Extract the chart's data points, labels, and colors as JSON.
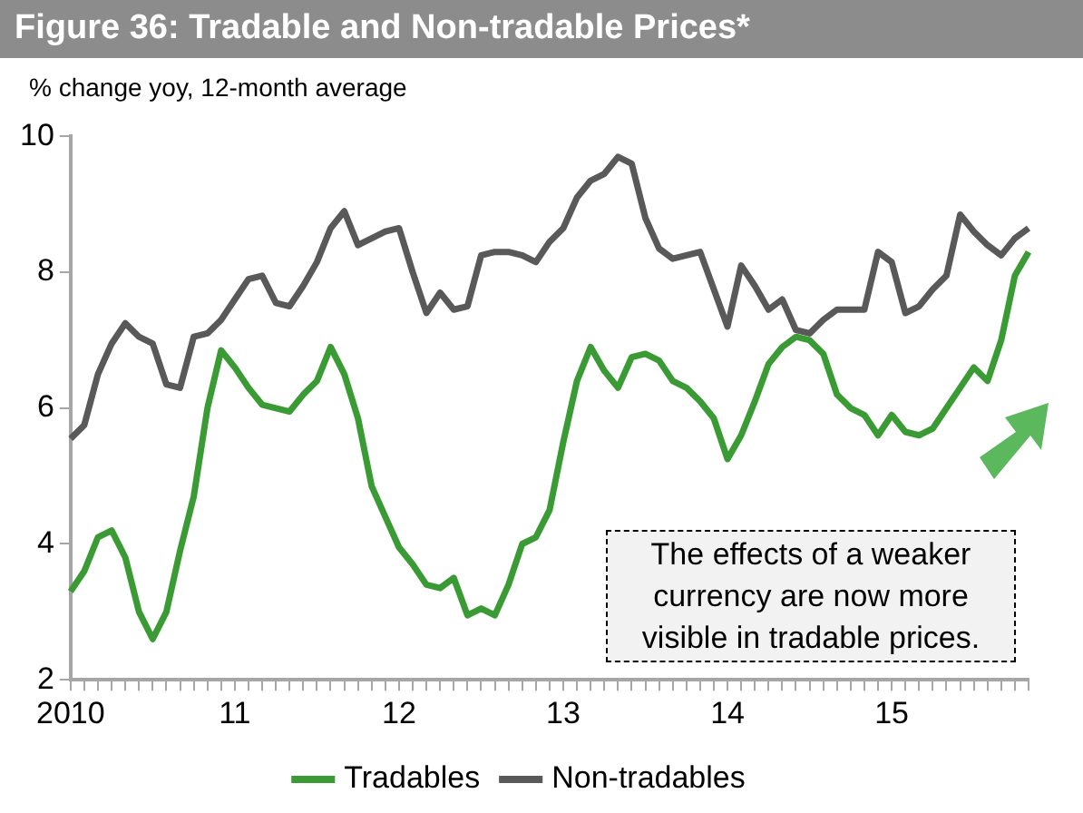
{
  "chart_data": {
    "type": "line",
    "title": "Figure 36: Tradable and Non-tradable Prices*",
    "subtitle": "% change yoy, 12-month average",
    "categories": [
      "2010",
      null,
      null,
      null,
      null,
      null,
      null,
      null,
      null,
      null,
      null,
      null,
      "11",
      null,
      null,
      null,
      null,
      null,
      null,
      null,
      null,
      null,
      null,
      null,
      "12",
      null,
      null,
      null,
      null,
      null,
      null,
      null,
      null,
      null,
      null,
      null,
      "13",
      null,
      null,
      null,
      null,
      null,
      null,
      null,
      null,
      null,
      null,
      null,
      "14",
      null,
      null,
      null,
      null,
      null,
      null,
      null,
      null,
      null,
      null,
      null,
      "15",
      null,
      null,
      null,
      null,
      null,
      null,
      null,
      null,
      null,
      null
    ],
    "series": [
      {
        "name": "Tradables",
        "color": "#3a9b35",
        "values": [
          3.3,
          3.6,
          4.1,
          4.2,
          3.8,
          3.0,
          2.6,
          3.0,
          3.9,
          4.7,
          6.0,
          6.85,
          6.6,
          6.3,
          6.05,
          6.0,
          5.95,
          6.2,
          6.4,
          6.9,
          6.5,
          5.85,
          4.85,
          4.4,
          3.95,
          3.7,
          3.4,
          3.35,
          3.5,
          2.95,
          3.05,
          2.95,
          3.4,
          4.0,
          4.1,
          4.5,
          5.5,
          6.4,
          6.9,
          6.55,
          6.3,
          6.75,
          6.8,
          6.7,
          6.4,
          6.3,
          6.1,
          5.85,
          5.25,
          5.6,
          6.1,
          6.65,
          6.9,
          7.05,
          7.0,
          6.8,
          6.2,
          6.0,
          5.9,
          5.6,
          5.9,
          5.65,
          5.6,
          5.7,
          6.0,
          6.3,
          6.6,
          6.4,
          7.0,
          7.95,
          8.3
        ]
      },
      {
        "name": "Non-tradables",
        "color": "#595959",
        "values": [
          5.55,
          5.75,
          6.5,
          6.95,
          7.25,
          7.05,
          6.95,
          6.35,
          6.3,
          7.05,
          7.1,
          7.3,
          7.6,
          7.9,
          7.95,
          7.55,
          7.5,
          7.8,
          8.15,
          8.65,
          8.9,
          8.4,
          8.5,
          8.6,
          8.65,
          8.0,
          7.4,
          7.7,
          7.45,
          7.5,
          8.25,
          8.3,
          8.3,
          8.25,
          8.15,
          8.45,
          8.65,
          9.1,
          9.35,
          9.45,
          9.7,
          9.6,
          8.8,
          8.35,
          8.2,
          8.25,
          8.3,
          7.75,
          7.2,
          8.1,
          7.8,
          7.45,
          7.6,
          7.15,
          7.1,
          7.3,
          7.45,
          7.45,
          7.45,
          8.3,
          8.15,
          7.4,
          7.5,
          7.75,
          7.95,
          8.85,
          8.6,
          8.4,
          8.25,
          8.5,
          8.65
        ]
      }
    ],
    "ylim": [
      2,
      10
    ],
    "yticks": [
      2,
      4,
      6,
      8,
      10
    ],
    "grid": false,
    "legend": "bottom",
    "marker": "none",
    "line_style": "solid",
    "annotations": [
      "The effects of a weaker currency are now more visible in tradable prices."
    ]
  }
}
